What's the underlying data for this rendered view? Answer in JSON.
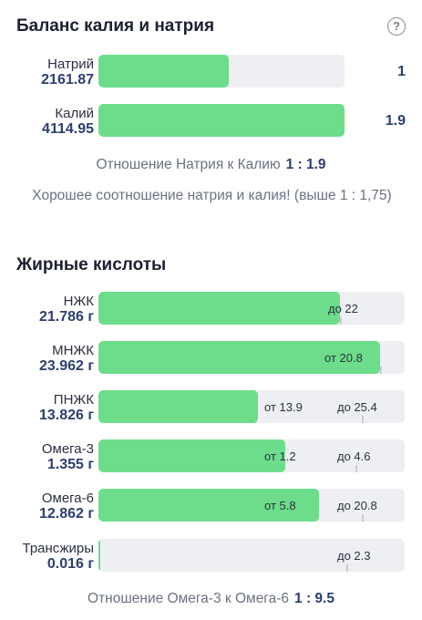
{
  "balance": {
    "title": "Баланс калия и натрия",
    "help_icon": "question-circle-icon",
    "sodium": {
      "label": "Натрий",
      "value": "2161.87",
      "ratio": "1",
      "fill_fraction": 0.53
    },
    "potassium": {
      "label": "Калий",
      "value": "4114.95",
      "ratio": "1.9",
      "fill_fraction": 1.0
    },
    "ratio_label": "Отношение Натрия к Калию",
    "ratio_value": "1 : 1.9",
    "note": "Хорошее соотношение натрия и калия! (выше 1 : 1,75)"
  },
  "fatty": {
    "title": "Жирные кислоты",
    "rows": [
      {
        "label": "НЖК",
        "value": "21.786 г",
        "fill_fraction": 0.79,
        "low": "",
        "high": "до 22"
      },
      {
        "label": "МНЖК",
        "value": "23.962 г",
        "fill_fraction": 0.92,
        "low": "от 20.8",
        "high": ""
      },
      {
        "label": "ПНЖК",
        "value": "13.826 г",
        "fill_fraction": 0.52,
        "low": "от 13.9",
        "high": "до 25.4"
      },
      {
        "label": "Омега-3",
        "value": "1.355 г",
        "fill_fraction": 0.61,
        "low": "от 1.2",
        "high": "до 4.6"
      },
      {
        "label": "Омега-6",
        "value": "12.862 г",
        "fill_fraction": 0.72,
        "low": "от 5.8",
        "high": "до 20.8"
      },
      {
        "label": "Трансжиры",
        "value": "0.016 г",
        "fill_fraction": 0.006,
        "low": "",
        "high": "до 2.3"
      }
    ],
    "ratio_label": "Отношение Омега-3 к Омега-6",
    "ratio_value": "1 : 9.5"
  },
  "colors": {
    "fill": "#6ddd8b",
    "track": "#eeeff2",
    "value": "#2e3f6e"
  }
}
